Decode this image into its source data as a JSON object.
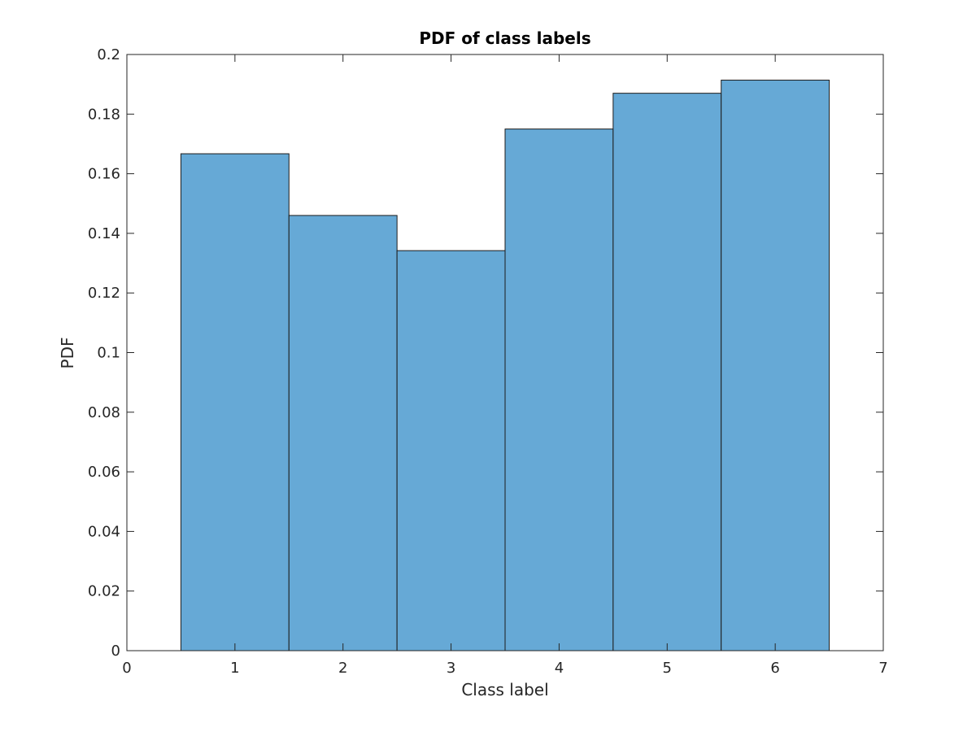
{
  "chart_data": {
    "type": "bar",
    "title": "PDF of class labels",
    "xlabel": "Class label",
    "ylabel": "PDF",
    "categories": [
      1,
      2,
      3,
      4,
      5,
      6
    ],
    "values": [
      0.1667,
      0.146,
      0.1342,
      0.175,
      0.187,
      0.1914
    ],
    "bin_edges": [
      0.5,
      1.5,
      2.5,
      3.5,
      4.5,
      5.5,
      6.5
    ],
    "xlim": [
      0,
      7
    ],
    "ylim": [
      0,
      0.2
    ],
    "xticks": [
      0,
      1,
      2,
      3,
      4,
      5,
      6,
      7
    ],
    "yticks": [
      0,
      0.02,
      0.04,
      0.06,
      0.08,
      0.1,
      0.12,
      0.14,
      0.16,
      0.18,
      0.2
    ],
    "ytick_labels": [
      "0",
      "0.02",
      "0.04",
      "0.06",
      "0.08",
      "0.1",
      "0.12",
      "0.14",
      "0.16",
      "0.18",
      "0.2"
    ],
    "grid": false,
    "legend": "none",
    "colors": {
      "bar_fill": "#66a9d6",
      "bar_edge": "#1c1c1c",
      "axis": "#262626",
      "background": "#ffffff"
    }
  }
}
